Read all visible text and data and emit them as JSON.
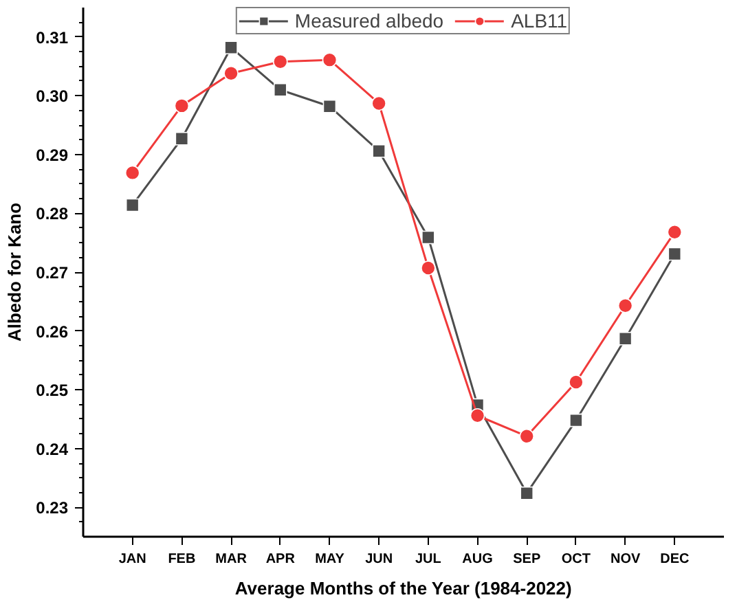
{
  "chart_data": {
    "type": "line",
    "xlabel": "Average Months of the Year (1984-2022)",
    "ylabel": "Albedo for Kano",
    "categories": [
      "JAN",
      "FEB",
      "MAR",
      "APR",
      "MAY",
      "JUN",
      "JUL",
      "AUG",
      "SEP",
      "OCT",
      "NOV",
      "DEC"
    ],
    "series": [
      {
        "name": "Measured albedo",
        "color": "#4d4d4d",
        "marker": "square",
        "values": [
          0.2814,
          0.2927,
          0.3082,
          0.301,
          0.2982,
          0.2906,
          0.2759,
          0.2474,
          0.2324,
          0.2448,
          0.2587,
          0.2731
        ]
      },
      {
        "name": "ALB11",
        "color": "#f03a3a",
        "marker": "circle",
        "values": [
          0.2869,
          0.2983,
          0.3038,
          0.3058,
          0.3061,
          0.2987,
          0.2707,
          0.2456,
          0.2421,
          0.2513,
          0.2643,
          0.2768
        ]
      }
    ],
    "ylim": [
      0.225,
      0.315
    ],
    "yticks": [
      0.23,
      0.24,
      0.25,
      0.26,
      0.27,
      0.28,
      0.29,
      {
        "value": 0.3,
        "label": "0.30"
      },
      0.31
    ],
    "grid": false,
    "legend": "top",
    "line_style": "solid"
  }
}
